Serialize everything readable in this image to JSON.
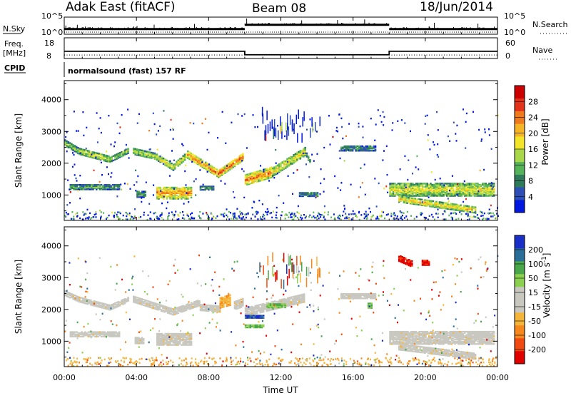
{
  "header": {
    "station": "Adak East (fitACF)",
    "beam": "Beam 08",
    "date": "18/Jun/2014"
  },
  "noise_panel": {
    "left_label": "N.Sky",
    "right_label": "N.Search",
    "left_ticks": [
      "10^5",
      "10^0"
    ],
    "right_ticks": [
      "10^5",
      "10^0"
    ],
    "levels": [
      {
        "start_hour": 0,
        "end_hour": 10,
        "level": 0.3
      },
      {
        "start_hour": 10,
        "end_hour": 18,
        "level": 0.55
      },
      {
        "start_hour": 18,
        "end_hour": 24,
        "level": 0.3
      }
    ]
  },
  "freq_panel": {
    "left_label_top": "Freq.",
    "left_label_bottom": "[MHz]",
    "right_label": "Nave",
    "left_ticks": [
      "18",
      "8"
    ],
    "right_ticks": [
      "60",
      "0"
    ],
    "frequency_mhz": [
      {
        "start_hour": 0,
        "end_hour": 10,
        "value": 11.5
      },
      {
        "start_hour": 10,
        "end_hour": 18,
        "value": 9.8
      },
      {
        "start_hour": 18,
        "end_hour": 24,
        "value": 11.5
      }
    ],
    "nave": 10
  },
  "cpid_panel": {
    "label": "CPID",
    "text": "normalsound (fast) 157 RF"
  },
  "x_axis": {
    "label": "Time UT",
    "ticks": [
      "00:00",
      "04:00",
      "08:00",
      "12:00",
      "16:00",
      "20:00",
      "00:00"
    ],
    "range_hours": [
      0,
      24
    ]
  },
  "chart_data": [
    {
      "type": "heatmap",
      "name": "power",
      "xlabel": "Time UT",
      "ylabel": "Slant Range [km]",
      "xlim": [
        0,
        24
      ],
      "ylim": [
        200,
        4600
      ],
      "yticks": [
        1000,
        2000,
        3000,
        4000
      ],
      "colorbar": {
        "label": "Power [dB]",
        "ticks": [
          "28",
          "24",
          "20",
          "16",
          "12",
          "8",
          "4"
        ],
        "colors": [
          "#0018e0",
          "#2f4fb8",
          "#2f7a5a",
          "#55b35a",
          "#a8d84a",
          "#f2e52a",
          "#f6b526",
          "#f07a1e",
          "#e2321a",
          "#cc0000"
        ]
      },
      "echo_regions": [
        {
          "t0": 0.0,
          "t1": 0.8,
          "r_start": 2620,
          "r_end": 2350,
          "width": 180,
          "level": 0.45
        },
        {
          "t0": 0.8,
          "t1": 2.5,
          "r_start": 2350,
          "r_end": 2100,
          "width": 180,
          "level": 0.55
        },
        {
          "t0": 2.5,
          "t1": 3.5,
          "r_start": 2100,
          "r_end": 2380,
          "width": 170,
          "level": 0.45
        },
        {
          "t0": 3.8,
          "t1": 5.0,
          "r_start": 2350,
          "r_end": 2200,
          "width": 180,
          "level": 0.5
        },
        {
          "t0": 5.0,
          "t1": 6.0,
          "r_start": 2200,
          "r_end": 1850,
          "width": 180,
          "level": 0.55
        },
        {
          "t0": 6.0,
          "t1": 6.8,
          "r_start": 1850,
          "r_end": 2250,
          "width": 180,
          "level": 0.55
        },
        {
          "t0": 6.8,
          "t1": 8.5,
          "r_start": 2250,
          "r_end": 1650,
          "width": 220,
          "level": 0.78
        },
        {
          "t0": 8.5,
          "t1": 9.9,
          "r_start": 1650,
          "r_end": 2200,
          "width": 240,
          "level": 0.82
        },
        {
          "t0": 10.0,
          "t1": 11.5,
          "r_start": 1450,
          "r_end": 1700,
          "width": 320,
          "level": 0.78
        },
        {
          "t0": 11.5,
          "t1": 13.3,
          "r_start": 1700,
          "r_end": 2350,
          "width": 260,
          "level": 0.6
        },
        {
          "t0": 13.3,
          "t1": 13.6,
          "r_start": 2350,
          "r_end": 2000,
          "width": 120,
          "level": 0.35
        },
        {
          "t0": 15.3,
          "t1": 17.2,
          "r_start": 2450,
          "r_end": 2450,
          "width": 160,
          "level": 0.3
        },
        {
          "t0": 0.3,
          "t1": 3.0,
          "r_start": 1230,
          "r_end": 1230,
          "width": 150,
          "level": 0.35
        },
        {
          "t0": 4.0,
          "t1": 4.5,
          "r_start": 1000,
          "r_end": 1000,
          "width": 180,
          "level": 0.35
        },
        {
          "t0": 5.1,
          "t1": 7.0,
          "r_start": 1050,
          "r_end": 1050,
          "width": 380,
          "level": 0.72
        },
        {
          "t0": 7.5,
          "t1": 8.3,
          "r_start": 1200,
          "r_end": 1200,
          "width": 120,
          "level": 0.35
        },
        {
          "t0": 13.0,
          "t1": 14.0,
          "r_start": 1000,
          "r_end": 1000,
          "width": 120,
          "level": 0.3
        },
        {
          "t0": 18.0,
          "t1": 23.8,
          "r_start": 1150,
          "r_end": 1150,
          "width": 400,
          "level": 0.55
        },
        {
          "t0": 18.5,
          "t1": 22.8,
          "r_start": 850,
          "r_end": 500,
          "width": 180,
          "level": 0.65
        }
      ]
    },
    {
      "type": "heatmap",
      "name": "velocity",
      "xlabel": "Time UT",
      "ylabel": "Slant Range [km]",
      "xlim": [
        0,
        24
      ],
      "ylim": [
        200,
        4600
      ],
      "yticks": [
        1000,
        2000,
        3000,
        4000
      ],
      "colorbar": {
        "label": "Velocity [m s^-1]",
        "ticks": [
          "200",
          "100",
          "50",
          "15",
          "-15",
          "-50",
          "-100",
          "-200"
        ],
        "colors": [
          "#e00000",
          "#f04a10",
          "#f5871c",
          "#f5b53a",
          "#c8c8c0",
          "#c8c8c0",
          "#8cd050",
          "#4aa84a",
          "#2a6e9a",
          "#1a2ec8"
        ]
      },
      "echo_regions": [
        {
          "t0": 0.0,
          "t1": 0.8,
          "r_start": 2500,
          "r_end": 2300,
          "width": 170,
          "class": "ground"
        },
        {
          "t0": 0.8,
          "t1": 2.5,
          "r_start": 2300,
          "r_end": 2050,
          "width": 170,
          "class": "ground"
        },
        {
          "t0": 2.5,
          "t1": 3.5,
          "r_start": 2050,
          "r_end": 2300,
          "width": 170,
          "class": "ground"
        },
        {
          "t0": 3.8,
          "t1": 6.0,
          "r_start": 2300,
          "r_end": 1900,
          "width": 180,
          "class": "ground"
        },
        {
          "t0": 6.0,
          "t1": 7.5,
          "r_start": 1900,
          "r_end": 2200,
          "width": 180,
          "class": "ground"
        },
        {
          "t0": 7.5,
          "t1": 8.6,
          "r_start": 2050,
          "r_end": 2000,
          "width": 200,
          "class": "ground"
        },
        {
          "t0": 8.6,
          "t1": 9.2,
          "r_start": 2200,
          "r_end": 2300,
          "width": 350,
          "class": "away_slow"
        },
        {
          "t0": 9.4,
          "t1": 9.9,
          "r_start": 2100,
          "r_end": 2200,
          "width": 250,
          "class": "ground"
        },
        {
          "t0": 10.0,
          "t1": 13.3,
          "r_start": 1900,
          "r_end": 2350,
          "width": 260,
          "class": "ground"
        },
        {
          "t0": 10.0,
          "t1": 11.0,
          "r_start": 1750,
          "r_end": 1750,
          "width": 80,
          "class": "toward_fast"
        },
        {
          "t0": 10.0,
          "t1": 11.0,
          "r_start": 1450,
          "r_end": 1450,
          "width": 80,
          "class": "toward_mid"
        },
        {
          "t0": 11.2,
          "t1": 12.2,
          "r_start": 2100,
          "r_end": 2100,
          "width": 120,
          "class": "toward_slow"
        },
        {
          "t0": 15.3,
          "t1": 17.2,
          "r_start": 2400,
          "r_end": 2400,
          "width": 150,
          "class": "ground"
        },
        {
          "t0": 16.8,
          "t1": 17.0,
          "r_start": 2100,
          "r_end": 2100,
          "width": 150,
          "class": "toward_slow"
        },
        {
          "t0": 0.3,
          "t1": 3.0,
          "r_start": 1200,
          "r_end": 1200,
          "width": 150,
          "class": "ground"
        },
        {
          "t0": 3.9,
          "t1": 4.4,
          "r_start": 1000,
          "r_end": 1000,
          "width": 180,
          "class": "ground"
        },
        {
          "t0": 5.1,
          "t1": 7.0,
          "r_start": 1050,
          "r_end": 1050,
          "width": 380,
          "class": "ground"
        },
        {
          "t0": 18.0,
          "t1": 23.8,
          "r_start": 1100,
          "r_end": 1100,
          "width": 420,
          "class": "ground"
        },
        {
          "t0": 18.5,
          "t1": 22.8,
          "r_start": 800,
          "r_end": 500,
          "width": 180,
          "class": "ground"
        },
        {
          "t0": 18.5,
          "t1": 19.3,
          "r_start": 3600,
          "r_end": 3400,
          "width": 200,
          "class": "away_fast"
        },
        {
          "t0": 19.8,
          "t1": 20.2,
          "r_start": 3450,
          "r_end": 3450,
          "width": 150,
          "class": "away_fast"
        }
      ]
    }
  ]
}
